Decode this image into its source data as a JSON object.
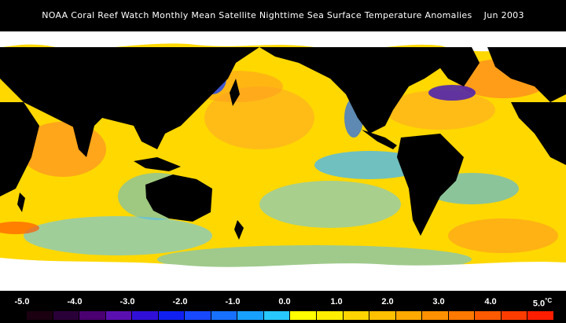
{
  "title": "NOAA Coral Reef Watch Monthly Mean Satellite Nighttime Sea Surface Temperature Anomalies    Jun 2003",
  "legend": {
    "ticks": [
      "-5.0",
      "-4.0",
      "-3.0",
      "-2.0",
      "-1.0",
      "0.0",
      "1.0",
      "2.0",
      "3.0",
      "4.0",
      "5.0"
    ],
    "unit": "°C",
    "colors": [
      "#1a0010",
      "#2a0038",
      "#4a0070",
      "#5a10b0",
      "#3010d8",
      "#1020f0",
      "#1848ff",
      "#1870ff",
      "#18a0ff",
      "#28c8ff",
      "#ffff00",
      "#ffee00",
      "#ffd400",
      "#ffc000",
      "#ffa800",
      "#ff9000",
      "#ff7800",
      "#ff5a00",
      "#ff3c00",
      "#ff1e00"
    ]
  },
  "map_colors": {
    "land": "#000000",
    "ice": "#ffffff",
    "neutral": "#ffe000",
    "warm": "#ff9a20",
    "hot": "#ff3000",
    "cool": "#40b8ff",
    "cold": "#1040ff"
  }
}
